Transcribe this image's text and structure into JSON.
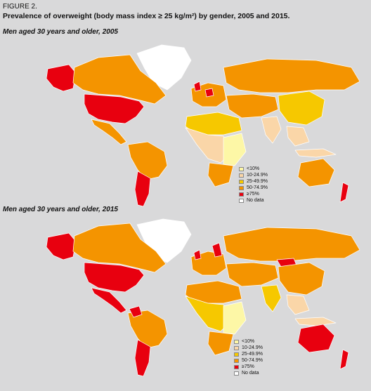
{
  "figure": {
    "label": "FIGURE 2.",
    "title": "Prevalence of overweight (body mass index ≥ 25 kg/m²) by gender, 2005 and 2015."
  },
  "maps": [
    {
      "subtitle": "Men aged 30 years and older, 2005"
    },
    {
      "subtitle": "Men aged 30 years and older, 2015"
    }
  ],
  "legend": [
    {
      "label": "<10%",
      "color": "#fdf7a6"
    },
    {
      "label": "10-24.9%",
      "color": "#fad6a8"
    },
    {
      "label": "25-49.9%",
      "color": "#f6c800"
    },
    {
      "label": "50-74.9%",
      "color": "#f49400"
    },
    {
      "label": "≥75%",
      "color": "#e8000f"
    },
    {
      "label": "No data",
      "color": "#ffffff"
    }
  ],
  "colors": {
    "ocean": "#d9d9da",
    "border": "#ffffff"
  }
}
